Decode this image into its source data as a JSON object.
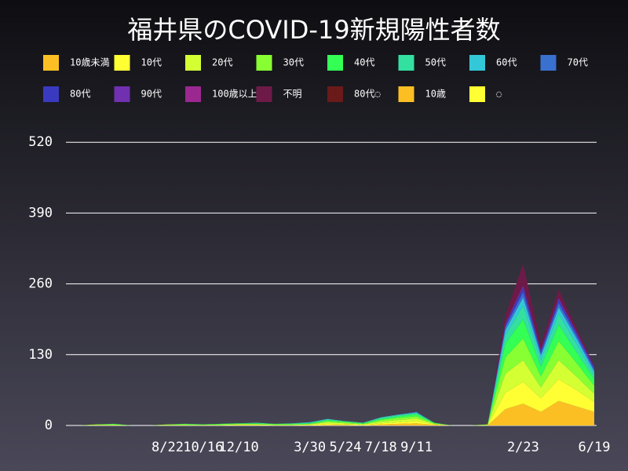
{
  "chart_data": {
    "type": "stacked-area",
    "title": "福井県のCOVID-19新規陽性者数",
    "categories": [
      null,
      null,
      null,
      null,
      null,
      null,
      null,
      "8/22",
      null,
      "10/16",
      null,
      "12/10",
      null,
      null,
      null,
      "3/30",
      null,
      "5/24",
      null,
      "7/18",
      null,
      "9/11",
      null,
      null,
      null,
      null,
      null,
      "2/23",
      null,
      null,
      null,
      "6/19"
    ],
    "ylim": [
      0,
      565
    ],
    "yticks": [
      0,
      130,
      260,
      390,
      520
    ],
    "grid": true,
    "series": [
      {
        "name": "10歳未満",
        "color": "#fbbf24",
        "values": [
          0,
          0,
          0,
          0,
          0,
          0,
          0,
          0,
          0,
          0,
          0,
          0,
          0,
          0,
          0,
          0,
          1,
          1,
          0,
          2,
          3,
          4,
          1,
          0,
          0,
          0,
          30,
          40,
          25,
          45,
          35,
          25
        ]
      },
      {
        "name": "10代",
        "color": "#ffff33",
        "values": [
          0,
          0,
          0,
          0,
          0,
          0,
          0,
          0,
          0,
          0,
          0,
          1,
          1,
          0,
          0,
          1,
          2,
          1,
          1,
          2,
          3,
          4,
          1,
          0,
          0,
          0,
          30,
          40,
          25,
          40,
          30,
          18
        ]
      },
      {
        "name": "20代",
        "color": "#d4ff33",
        "values": [
          0,
          0,
          0,
          1,
          1,
          0,
          0,
          1,
          1,
          1,
          1,
          1,
          1,
          1,
          1,
          1,
          3,
          2,
          1,
          3,
          4,
          5,
          1,
          0,
          0,
          1,
          35,
          40,
          20,
          35,
          25,
          15
        ]
      },
      {
        "name": "30代",
        "color": "#88ff33",
        "values": [
          0,
          0,
          0,
          1,
          1,
          0,
          0,
          1,
          1,
          0,
          1,
          1,
          1,
          1,
          1,
          1,
          2,
          2,
          1,
          3,
          4,
          4,
          1,
          0,
          0,
          1,
          30,
          40,
          20,
          35,
          25,
          15
        ]
      },
      {
        "name": "40代",
        "color": "#33ff55",
        "values": [
          0,
          0,
          0,
          0,
          1,
          0,
          0,
          0,
          1,
          1,
          1,
          1,
          1,
          1,
          1,
          1,
          2,
          1,
          1,
          2,
          3,
          4,
          1,
          0,
          0,
          0,
          25,
          35,
          18,
          30,
          20,
          12
        ]
      },
      {
        "name": "50代",
        "color": "#33e0a0",
        "values": [
          0,
          0,
          0,
          0,
          0,
          0,
          0,
          0,
          0,
          0,
          0,
          0,
          1,
          0,
          1,
          1,
          1,
          1,
          1,
          2,
          2,
          2,
          0,
          0,
          0,
          0,
          15,
          25,
          12,
          20,
          15,
          8
        ]
      },
      {
        "name": "60代",
        "color": "#33c8d8",
        "values": [
          0,
          0,
          0,
          0,
          0,
          0,
          0,
          0,
          0,
          0,
          0,
          0,
          0,
          0,
          0,
          1,
          1,
          0,
          0,
          1,
          1,
          1,
          0,
          0,
          0,
          0,
          10,
          15,
          8,
          12,
          10,
          6
        ]
      },
      {
        "name": "70代",
        "color": "#3a70d0",
        "values": [
          0,
          0,
          0,
          0,
          0,
          0,
          0,
          0,
          0,
          0,
          0,
          0,
          0,
          0,
          0,
          0,
          0,
          0,
          0,
          0,
          0,
          1,
          0,
          0,
          0,
          0,
          6,
          10,
          5,
          8,
          6,
          4
        ]
      },
      {
        "name": "80代",
        "color": "#3a3ac0",
        "values": [
          0,
          0,
          0,
          0,
          0,
          0,
          0,
          0,
          0,
          0,
          0,
          0,
          0,
          0,
          0,
          0,
          0,
          0,
          0,
          0,
          0,
          0,
          0,
          0,
          0,
          0,
          4,
          8,
          4,
          6,
          4,
          3
        ]
      },
      {
        "name": "90代",
        "color": "#7030b0",
        "values": [
          0,
          0,
          0,
          0,
          0,
          0,
          0,
          0,
          0,
          0,
          0,
          0,
          0,
          0,
          0,
          0,
          0,
          0,
          0,
          0,
          0,
          0,
          0,
          0,
          0,
          0,
          2,
          4,
          2,
          3,
          2,
          2
        ]
      },
      {
        "name": "100歳以上",
        "color": "#9b2890",
        "values": [
          0,
          0,
          0,
          0,
          0,
          0,
          0,
          0,
          0,
          0,
          0,
          0,
          0,
          0,
          0,
          0,
          0,
          0,
          0,
          0,
          0,
          0,
          0,
          0,
          0,
          0,
          0,
          0,
          0,
          0,
          0,
          0
        ]
      },
      {
        "name": "不明",
        "color": "#6e1a48",
        "values": [
          0,
          0,
          0,
          0,
          0,
          0,
          0,
          0,
          0,
          0,
          0,
          0,
          0,
          0,
          0,
          0,
          0,
          0,
          0,
          0,
          0,
          0,
          0,
          0,
          0,
          0,
          15,
          40,
          11,
          16,
          8,
          2
        ]
      },
      {
        "name": "80代◌",
        "color": "#6b1a1a",
        "values": [
          0,
          0,
          0,
          0,
          0,
          0,
          0,
          0,
          0,
          0,
          0,
          0,
          0,
          0,
          0,
          0,
          0,
          0,
          0,
          0,
          0,
          0,
          0,
          0,
          0,
          0,
          0,
          0,
          0,
          0,
          0,
          0
        ]
      },
      {
        "name": "10歳",
        "color": "#fbbf24",
        "values": [
          0,
          0,
          0,
          0,
          0,
          0,
          0,
          0,
          0,
          0,
          0,
          0,
          0,
          0,
          0,
          0,
          0,
          0,
          0,
          0,
          0,
          0,
          0,
          0,
          0,
          0,
          0,
          0,
          0,
          0,
          0,
          0
        ]
      },
      {
        "name": "◌",
        "color": "#ffff33",
        "values": [
          0,
          0,
          0,
          0,
          0,
          0,
          0,
          0,
          0,
          0,
          0,
          0,
          0,
          0,
          0,
          0,
          0,
          0,
          0,
          0,
          0,
          0,
          0,
          0,
          0,
          0,
          0,
          0,
          0,
          0,
          0,
          0
        ]
      }
    ]
  }
}
